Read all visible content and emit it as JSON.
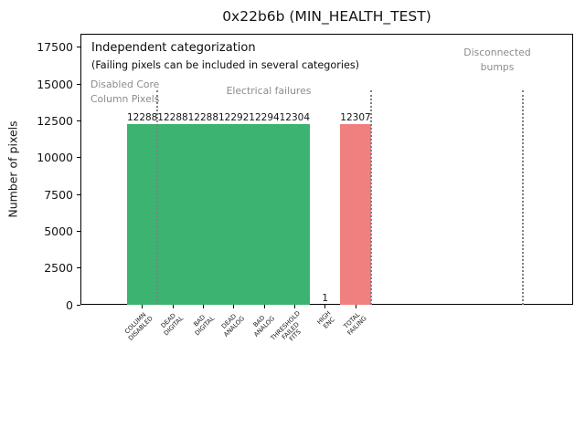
{
  "chart_data": {
    "type": "bar",
    "title": "0x22b6b (MIN_HEALTH_TEST)",
    "xlabel": "",
    "ylabel": "Number of pixels",
    "categories": [
      "COLUMN\nDISABLED",
      "DEAD\nDIGITAL",
      "BAD\nDIGITAL",
      "DEAD\nANALOG",
      "BAD\nANALOG",
      "THRESHOLD\nFAILED\nFITS",
      "HIGH\nENC",
      "TOTAL\nFAILING"
    ],
    "values": [
      12288,
      12288,
      12288,
      12292,
      12294,
      12304,
      1,
      12307
    ],
    "bar_value_labels": [
      "12288",
      "12288",
      "12288",
      "12292",
      "12294",
      "12304",
      "1",
      "12307"
    ],
    "bar_colors": [
      "#3cb371",
      "#3cb371",
      "#3cb371",
      "#3cb371",
      "#3cb371",
      "#3cb371",
      "#3cb371",
      "#f08080"
    ],
    "yticks": [
      0,
      2500,
      5000,
      7500,
      10000,
      12500,
      15000,
      17500
    ],
    "ylim": [
      0,
      18420
    ],
    "xlim_units": [
      -2.03,
      14.14
    ],
    "separators_x_units": [
      0.5,
      7.5,
      12.5
    ],
    "grid": false,
    "legend": null,
    "annotations": {
      "note_title": "Independent categorization",
      "note_subtitle": "(Failing pixels can be included in several categories)",
      "sections": [
        {
          "label": "Disabled Core\nColumn Pixels"
        },
        {
          "label": "Electrical failures"
        },
        {
          "label": "Disconnected\nbumps"
        }
      ]
    },
    "colors": {
      "bar_green": "#3cb371",
      "bar_red": "#f08080",
      "section_text_gray": "#8c8c8c",
      "separator_gray": "#7f7f7f"
    }
  }
}
